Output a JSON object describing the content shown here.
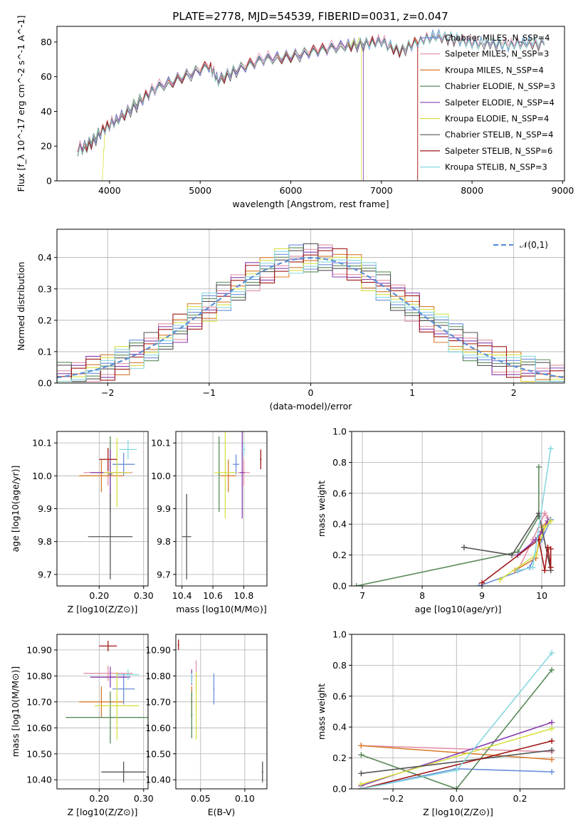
{
  "title": "PLATE=2778, MJD=54539, FIBERID=0031, z=0.047",
  "series_colors": [
    "#6b8fd9",
    "#e090a8",
    "#d97b2b",
    "#5a8a5a",
    "#8a3fb0",
    "#d8e040",
    "#555555",
    "#a01818",
    "#88d8e0"
  ],
  "chart_data": [
    {
      "type": "line",
      "name": "spectrum",
      "xlabel": "wavelength [Angstrom, rest frame]",
      "ylabel": "Flux [f_λ 10^-17 erg cm^-2 s^-1 A^-1]",
      "xlim": [
        3420,
        9020
      ],
      "ylim": [
        0,
        89
      ],
      "xticks": [
        4000,
        5000,
        6000,
        7000,
        8000,
        9000
      ],
      "yticks": [
        0,
        20,
        40,
        60,
        80
      ],
      "grid": false,
      "legend_position": "upper right",
      "series": [
        {
          "name": "Chabrier MILES, N_SSP=4",
          "x": [
            3650,
            3800,
            3950,
            4100,
            4300,
            4500,
            4800,
            5100,
            5200,
            5400,
            5700,
            6000,
            6300,
            6600,
            6800,
            7000,
            7200,
            7400,
            7600,
            7800,
            8000,
            8200,
            8400,
            8600,
            8800
          ],
          "y": [
            18,
            22,
            30,
            36,
            44,
            53,
            60,
            66,
            58,
            64,
            70,
            72,
            75,
            78,
            79,
            80,
            75,
            80,
            84,
            82,
            79,
            80,
            78,
            80,
            79
          ]
        },
        {
          "name": "Salpeter MILES, N_SSP=3",
          "x": [
            3650,
            3800,
            3950,
            4100,
            4300,
            4500,
            4800,
            5100,
            5200,
            5400,
            5700,
            6000,
            6300,
            6600,
            6800,
            7000,
            7200,
            7400,
            7600,
            7800,
            8000,
            8200,
            8400,
            8600,
            8800
          ],
          "y": [
            19,
            23,
            31,
            37,
            45,
            54,
            61,
            67,
            59,
            65,
            71,
            73,
            76,
            79,
            80,
            81,
            76,
            80,
            84,
            82,
            80,
            81,
            79,
            80,
            79
          ]
        },
        {
          "name": "Kroupa MILES, N_SSP=4",
          "x": [
            3650,
            3800,
            3950,
            4100,
            4300,
            4500,
            4800,
            5100,
            5200,
            5400,
            5700,
            6000,
            6300,
            6600,
            6800,
            7000,
            7200,
            7400
          ],
          "y": [
            18,
            22,
            30,
            36,
            44,
            53,
            60,
            66,
            58,
            64,
            70,
            72,
            75,
            78,
            79,
            80,
            75,
            79
          ]
        },
        {
          "name": "Chabrier ELODIE, N_SSP=3",
          "x": [
            3650,
            3800,
            3950,
            4100,
            4300,
            4500,
            4800,
            5100,
            5200,
            5400,
            5700,
            6000,
            6300,
            6600,
            6800,
            7000,
            7200,
            7400,
            7600,
            7800,
            8000,
            8200,
            8400,
            8600,
            8800
          ],
          "y": [
            18,
            23,
            31,
            36,
            45,
            53,
            60,
            66,
            59,
            64,
            70,
            72,
            75,
            78,
            79,
            80,
            75,
            80,
            84,
            82,
            79,
            80,
            78,
            80,
            79
          ]
        },
        {
          "name": "Salpeter ELODIE, N_SSP=4",
          "x": [
            3650,
            3800,
            3950,
            4100,
            4300,
            4500,
            4800,
            5100,
            5200,
            5400,
            5700,
            6000,
            6300,
            6600,
            6800
          ],
          "y": [
            18,
            22,
            30,
            36,
            44,
            53,
            60,
            66,
            58,
            64,
            70,
            72,
            75,
            78,
            79
          ]
        },
        {
          "name": "Kroupa ELODIE, N_SSP=4",
          "x": [
            3920,
            3950,
            4100,
            4300,
            4500,
            4800,
            5100,
            5200,
            5400,
            5700,
            6000,
            6300,
            6600,
            6780
          ],
          "y": [
            0,
            30,
            36,
            44,
            53,
            60,
            66,
            58,
            64,
            70,
            72,
            75,
            78,
            79
          ]
        },
        {
          "name": "Chabrier STELIB, N_SSP=4",
          "x": [
            3650,
            3800,
            3950,
            4100,
            4300,
            4500,
            4800,
            5100,
            5200,
            5400,
            5700,
            6000,
            6300,
            6600,
            6800,
            7000,
            7200,
            7400,
            7600,
            7800,
            8000,
            8200,
            8400,
            8600,
            8800
          ],
          "y": [
            16,
            21,
            29,
            35,
            43,
            52,
            59,
            65,
            57,
            63,
            69,
            71,
            74,
            77,
            78,
            79,
            74,
            79,
            83,
            81,
            78,
            79,
            77,
            79,
            78
          ]
        },
        {
          "name": "Salpeter STELIB, N_SSP=6",
          "x": [
            3650,
            3800,
            3950,
            4100,
            4300,
            4500,
            4800,
            5100,
            5200,
            5400,
            5700,
            6000,
            6300,
            6600,
            6800,
            7000,
            7200,
            7400
          ],
          "y": [
            19,
            22,
            30,
            36,
            44,
            53,
            60,
            66,
            58,
            64,
            70,
            72,
            75,
            78,
            79,
            80,
            75,
            80
          ]
        },
        {
          "name": "Kroupa STELIB, N_SSP=3",
          "x": [
            3650,
            3800,
            3950,
            4100,
            4300,
            4500,
            4800,
            5100,
            5200,
            5400,
            5700,
            6000,
            6300,
            6600,
            6800,
            7000,
            7200,
            7400,
            7600,
            7800,
            8000,
            8200,
            8400,
            8600,
            8800
          ],
          "y": [
            18,
            22,
            30,
            36,
            44,
            53,
            60,
            66,
            58,
            64,
            70,
            72,
            75,
            78,
            79,
            80,
            75,
            80,
            84,
            82,
            79,
            80,
            78,
            80,
            79
          ]
        }
      ]
    },
    {
      "type": "area",
      "name": "residual-histogram",
      "xlabel": "(data-model)/error",
      "ylabel": "Normed distribution",
      "xlim": [
        -2.5,
        2.5
      ],
      "ylim": [
        0,
        0.49
      ],
      "xticks": [
        -2,
        -1,
        0,
        1,
        2
      ],
      "yticks": [
        0.0,
        0.1,
        0.2,
        0.3,
        0.4
      ],
      "grid": true,
      "legend": "𝒩(0,1)",
      "legend_position": "upper right",
      "bins": [
        -2.5,
        2.5,
        35
      ],
      "gaussian": {
        "mean": 0,
        "sigma": 1
      }
    },
    {
      "type": "scatter",
      "name": "age-vs-Z",
      "xlabel": "Z [log10(Z/Z⊙)]",
      "ylabel": "age [log10(age/yr)]",
      "xlim": [
        0.105,
        0.31
      ],
      "ylim": [
        9.665,
        10.135
      ],
      "xticks": [
        0.2,
        0.3
      ],
      "yticks": [
        9.7,
        9.8,
        9.9,
        10.0,
        10.1
      ],
      "grid": true,
      "points": [
        {
          "x": 0.255,
          "y": 10.035,
          "xerr": 0.025,
          "yerr": 0.035
        },
        {
          "x": 0.22,
          "y": 10.01,
          "xerr": 0.055,
          "yerr": 0.04
        },
        {
          "x": 0.205,
          "y": 10.0,
          "xerr": 0.05,
          "yerr": 0.05
        },
        {
          "x": 0.225,
          "y": 10.005,
          "xerr": 0.005,
          "yerr": 0.115
        },
        {
          "x": 0.225,
          "y": 10.01,
          "xerr": 0.045,
          "yerr": 0.07
        },
        {
          "x": 0.24,
          "y": 10.01,
          "xerr": 0.03,
          "yerr": 0.105
        },
        {
          "x": 0.225,
          "y": 9.815,
          "xerr": 0.05,
          "yerr": 0.13
        },
        {
          "x": 0.22,
          "y": 10.05,
          "xerr": 0.02,
          "yerr": 0.035
        },
        {
          "x": 0.265,
          "y": 10.08,
          "xerr": 0.02,
          "yerr": 0.03
        }
      ]
    },
    {
      "type": "scatter",
      "name": "age-vs-mass",
      "xlabel": "mass [log10(M/M⊙)]",
      "ylabel": "",
      "xlim": [
        10.36,
        10.95
      ],
      "ylim": [
        9.665,
        10.135
      ],
      "xticks": [
        10.4,
        10.6,
        10.8
      ],
      "yticks": [
        9.7,
        9.8,
        9.9,
        10.0,
        10.1
      ],
      "grid": true,
      "points": [
        {
          "x": 10.75,
          "y": 10.035,
          "xerr": 0.02,
          "yerr": 0.03
        },
        {
          "x": 10.8,
          "y": 10.01,
          "xerr": 0.04,
          "yerr": 0.04
        },
        {
          "x": 10.7,
          "y": 10.0,
          "xerr": 0.05,
          "yerr": 0.05
        },
        {
          "x": 10.64,
          "y": 10.005,
          "xerr": 0.005,
          "yerr": 0.115
        },
        {
          "x": 10.79,
          "y": 10.01,
          "xerr": 0.015,
          "yerr": 0.14
        },
        {
          "x": 10.68,
          "y": 10.01,
          "xerr": 0.07,
          "yerr": 0.14
        },
        {
          "x": 10.43,
          "y": 9.815,
          "xerr": 0.03,
          "yerr": 0.13
        },
        {
          "x": 10.91,
          "y": 10.05,
          "xerr": 0.005,
          "yerr": 0.03
        },
        {
          "x": 10.8,
          "y": 10.08,
          "xerr": 0.01,
          "yerr": 0.02
        }
      ]
    },
    {
      "type": "line",
      "name": "massweight-vs-age",
      "xlabel": "age [log10(age/yr)]",
      "ylabel": "mass weight",
      "xlim": [
        6.82,
        10.38
      ],
      "ylim": [
        0,
        1.0
      ],
      "xticks": [
        7,
        8,
        9,
        10
      ],
      "yticks": [
        0.0,
        0.2,
        0.4,
        0.6,
        0.8,
        1.0
      ],
      "grid": true,
      "series": [
        {
          "x": [
            8.95,
            9.8,
            10.0,
            10.15
          ],
          "y": [
            0.0,
            0.12,
            0.3,
            0.43
          ]
        },
        {
          "x": [
            9.6,
            9.85,
            10.05,
            10.1
          ],
          "y": [
            0.1,
            0.3,
            0.47,
            0.44
          ]
        },
        {
          "x": [
            9.55,
            9.9,
            10.0,
            10.1
          ],
          "y": [
            0.1,
            0.18,
            0.38,
            0.42
          ]
        },
        {
          "x": [
            6.9,
            9.6,
            9.95,
            9.95
          ],
          "y": [
            0.0,
            0.22,
            0.45,
            0.77
          ]
        },
        {
          "x": [
            9.6,
            9.9,
            10.0,
            10.1
          ],
          "y": [
            0.2,
            0.3,
            0.35,
            0.42
          ]
        },
        {
          "x": [
            9.3,
            9.9,
            10.05,
            10.15
          ],
          "y": [
            0.04,
            0.2,
            0.38,
            0.42
          ]
        },
        {
          "x": [
            8.7,
            9.5,
            9.95,
            10.15
          ],
          "y": [
            0.25,
            0.2,
            0.47,
            0.1
          ]
        },
        {
          "x": [
            9.0,
            9.95,
            10.05,
            10.1,
            10.15,
            10.15
          ],
          "y": [
            0.02,
            0.3,
            0.1,
            0.25,
            0.12,
            0.24
          ]
        },
        {
          "x": [
            9.6,
            9.85,
            10.15
          ],
          "y": [
            0.1,
            0.12,
            0.89
          ]
        }
      ]
    },
    {
      "type": "scatter",
      "name": "mass-vs-Z",
      "xlabel": "Z [log10(Z/Z⊙)]",
      "ylabel": "mass [log10(M/M⊙)]",
      "xlim": [
        0.105,
        0.31
      ],
      "ylim": [
        10.365,
        10.96
      ],
      "xticks": [
        0.2,
        0.3
      ],
      "yticks": [
        10.4,
        10.5,
        10.6,
        10.7,
        10.8,
        10.9
      ],
      "grid": true,
      "points": [
        {
          "x": 0.255,
          "y": 10.75,
          "xerr": 0.025,
          "yerr": 0.06
        },
        {
          "x": 0.22,
          "y": 10.81,
          "xerr": 0.055,
          "yerr": 0.03
        },
        {
          "x": 0.205,
          "y": 10.7,
          "xerr": 0.05,
          "yerr": 0.06
        },
        {
          "x": 0.225,
          "y": 10.64,
          "xerr": 0.1,
          "yerr": 0.1
        },
        {
          "x": 0.225,
          "y": 10.795,
          "xerr": 0.045,
          "yerr": 0.04
        },
        {
          "x": 0.24,
          "y": 10.685,
          "xerr": 0.05,
          "yerr": 0.13
        },
        {
          "x": 0.255,
          "y": 10.43,
          "xerr": 0.05,
          "yerr": 0.04
        },
        {
          "x": 0.22,
          "y": 10.915,
          "xerr": 0.02,
          "yerr": 0.02
        },
        {
          "x": 0.265,
          "y": 10.805,
          "xerr": 0.025,
          "yerr": 0.02
        }
      ]
    },
    {
      "type": "scatter",
      "name": "mass-vs-EBV",
      "xlabel": "E(B-V)",
      "ylabel": "",
      "xlim": [
        0.022,
        0.125
      ],
      "ylim": [
        10.365,
        10.96
      ],
      "xticks": [
        0.05,
        0.1
      ],
      "yticks": [
        10.4,
        10.5,
        10.6,
        10.7,
        10.8,
        10.9
      ],
      "grid": true,
      "points": [
        {
          "x": 0.065,
          "y": 10.75,
          "yerr": 0.06
        },
        {
          "x": 0.045,
          "y": 10.8,
          "yerr": 0.06
        },
        {
          "x": 0.04,
          "y": 10.7,
          "yerr": 0.06
        },
        {
          "x": 0.04,
          "y": 10.65,
          "yerr": 0.09
        },
        {
          "x": 0.04,
          "y": 10.795,
          "yerr": 0.03
        },
        {
          "x": 0.045,
          "y": 10.685,
          "yerr": 0.13
        },
        {
          "x": 0.12,
          "y": 10.43,
          "yerr": 0.04
        },
        {
          "x": 0.025,
          "y": 10.92,
          "yerr": 0.02
        },
        {
          "x": 0.04,
          "y": 10.79,
          "yerr": 0.02
        }
      ]
    },
    {
      "type": "line",
      "name": "massweight-vs-Z",
      "xlabel": "Z [log10(Z/Z⊙)]",
      "ylabel": "mass weight",
      "xlim": [
        -0.33,
        0.34
      ],
      "ylim": [
        0,
        1.0
      ],
      "xticks": [
        -0.2,
        0.0,
        0.2
      ],
      "yticks": [
        0.0,
        0.2,
        0.4,
        0.6,
        0.8,
        1.0
      ],
      "grid": true,
      "series": [
        {
          "x": [
            -0.3,
            0.0,
            0.3
          ],
          "y": [
            0.0,
            0.13,
            0.11
          ]
        },
        {
          "x": [
            -0.3,
            0.3
          ],
          "y": [
            0.28,
            0.24
          ]
        },
        {
          "x": [
            -0.3,
            0.3
          ],
          "y": [
            0.28,
            0.19
          ]
        },
        {
          "x": [
            -0.3,
            0.0,
            0.3
          ],
          "y": [
            0.22,
            0.0,
            0.77
          ]
        },
        {
          "x": [
            -0.3,
            0.3
          ],
          "y": [
            0.02,
            0.43
          ]
        },
        {
          "x": [
            -0.3,
            0.3
          ],
          "y": [
            0.03,
            0.39
          ]
        },
        {
          "x": [
            -0.3,
            0.3
          ],
          "y": [
            0.1,
            0.25
          ]
        },
        {
          "x": [
            -0.3,
            0.3
          ],
          "y": [
            0.0,
            0.31
          ]
        },
        {
          "x": [
            -0.3,
            0.0,
            0.3
          ],
          "y": [
            0.0,
            0.12,
            0.88
          ]
        }
      ]
    }
  ]
}
